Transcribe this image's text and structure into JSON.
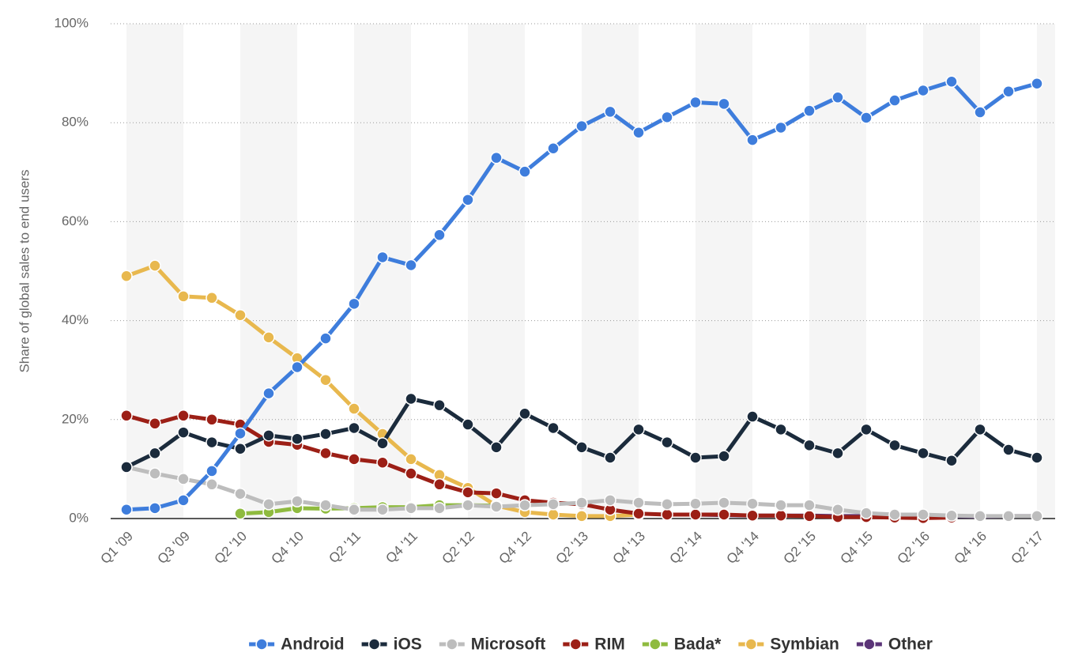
{
  "chart_data": {
    "type": "line",
    "y_label": "Share of global sales to end users",
    "categories": [
      "Q1 '09",
      null,
      "Q3 '09",
      null,
      "Q2 '10",
      null,
      "Q4 '10",
      null,
      "Q2 '11",
      null,
      "Q4 '11",
      null,
      "Q2 '12",
      null,
      "Q4 '12",
      null,
      "Q2 '13",
      null,
      "Q4 '13",
      null,
      "Q2 '14",
      null,
      "Q4 '14",
      null,
      "Q2 '15",
      null,
      "Q4 '15",
      null,
      "Q2 '16",
      null,
      "Q4 '16",
      null,
      "Q2 '17"
    ],
    "series": [
      {
        "name": "Android",
        "color": "#3e7ddc",
        "values": [
          1.8,
          2.1,
          3.7,
          9.6,
          17.2,
          25.3,
          30.6,
          36.4,
          43.4,
          52.8,
          51.2,
          57.3,
          64.4,
          72.9,
          70.1,
          74.8,
          79.3,
          82.2,
          78.0,
          81.1,
          84.1,
          83.8,
          76.5,
          79.0,
          82.4,
          85.1,
          81.0,
          84.5,
          86.5,
          88.3,
          82.1,
          86.3,
          87.9
        ]
      },
      {
        "name": "iOS",
        "color": "#1b2b3c",
        "values": [
          10.4,
          13.2,
          17.4,
          15.4,
          14.1,
          16.8,
          16.1,
          17.1,
          18.3,
          15.2,
          24.2,
          22.9,
          19.0,
          14.4,
          21.2,
          18.3,
          14.4,
          12.3,
          18.0,
          15.4,
          12.3,
          12.6,
          20.6,
          18.0,
          14.8,
          13.2,
          18.0,
          14.8,
          13.2,
          11.7,
          18.0,
          13.9,
          12.3
        ]
      },
      {
        "name": "Microsoft",
        "color": "#bdbdbd",
        "values": [
          10.4,
          9.1,
          8.0,
          6.9,
          5.0,
          2.9,
          3.5,
          2.7,
          1.8,
          1.8,
          2.1,
          2.1,
          2.7,
          2.4,
          2.7,
          2.9,
          3.2,
          3.7,
          3.2,
          2.9,
          3.0,
          3.2,
          3.0,
          2.7,
          2.7,
          1.8,
          1.1,
          0.8,
          0.8,
          0.6,
          0.5,
          0.5,
          0.5
        ]
      },
      {
        "name": "RIM",
        "color": "#9c1f16",
        "values": [
          20.8,
          19.2,
          20.8,
          20.0,
          19.0,
          15.5,
          14.9,
          13.2,
          12.0,
          11.3,
          9.1,
          6.9,
          5.3,
          5.1,
          3.7,
          3.2,
          2.9,
          1.8,
          1.0,
          0.8,
          0.8,
          0.8,
          0.6,
          0.6,
          0.5,
          0.3,
          0.3,
          0.2,
          0.1,
          0.2,
          null,
          null,
          null
        ]
      },
      {
        "name": "Bada*",
        "color": "#8fbb3f",
        "values": [
          null,
          null,
          null,
          null,
          1.0,
          1.3,
          2.1,
          2.0,
          2.1,
          2.3,
          2.3,
          2.7,
          2.7,
          2.6,
          null,
          null,
          null,
          null,
          null,
          null,
          null,
          null,
          null,
          null,
          null,
          null,
          null,
          null,
          null,
          null,
          null,
          null,
          null
        ]
      },
      {
        "name": "Symbian",
        "color": "#e8b84e",
        "values": [
          49.0,
          51.1,
          44.9,
          44.6,
          41.1,
          36.6,
          32.4,
          28.0,
          22.2,
          17.1,
          12.0,
          8.8,
          6.2,
          2.6,
          1.3,
          0.8,
          0.5,
          0.5,
          0.8,
          null,
          null,
          null,
          null,
          null,
          null,
          null,
          null,
          null,
          null,
          null,
          null,
          null,
          null
        ]
      },
      {
        "name": "Other",
        "color": "#5b3478",
        "values": [
          null,
          null,
          null,
          null,
          null,
          null,
          null,
          null,
          null,
          null,
          null,
          null,
          null,
          null,
          null,
          null,
          null,
          null,
          null,
          0.8,
          0.8,
          0.7,
          0.6,
          0.6,
          0.6,
          0.5,
          0.5,
          0.5,
          0.5,
          0.5,
          0.4,
          0.5,
          0.5
        ]
      }
    ],
    "ylim": [
      0,
      100
    ],
    "yticks": [
      {
        "value": 0,
        "label": "0%"
      },
      {
        "value": 20,
        "label": "20%"
      },
      {
        "value": 40,
        "label": "40%"
      },
      {
        "value": 60,
        "label": "60%"
      },
      {
        "value": 80,
        "label": "80%"
      },
      {
        "value": 100,
        "label": "100%"
      }
    ],
    "grid": true,
    "legend": "bottom"
  }
}
